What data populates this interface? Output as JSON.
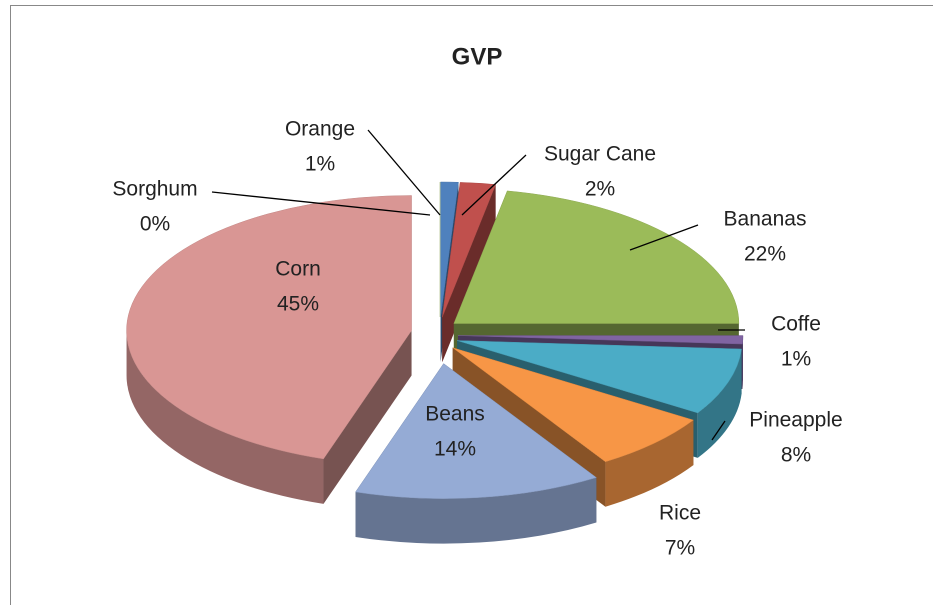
{
  "chart_data": {
    "type": "pie",
    "title": "GVP",
    "categories": [
      "Orange",
      "Sugar Cane",
      "Bananas",
      "Coffe",
      "Pineapple",
      "Rice",
      "Beans",
      "Corn",
      "Sorghum"
    ],
    "values": [
      1,
      2,
      22,
      1,
      8,
      7,
      14,
      45,
      0
    ],
    "value_labels": [
      "1%",
      "2%",
      "22%",
      "1%",
      "8%",
      "7%",
      "14%",
      "45%",
      "0%"
    ],
    "colors": [
      "#4f81bd",
      "#c0504d",
      "#9bbb59",
      "#8064a2",
      "#4bacc6",
      "#f79646",
      "#95abd5",
      "#d99694",
      "#c3d69b"
    ]
  }
}
